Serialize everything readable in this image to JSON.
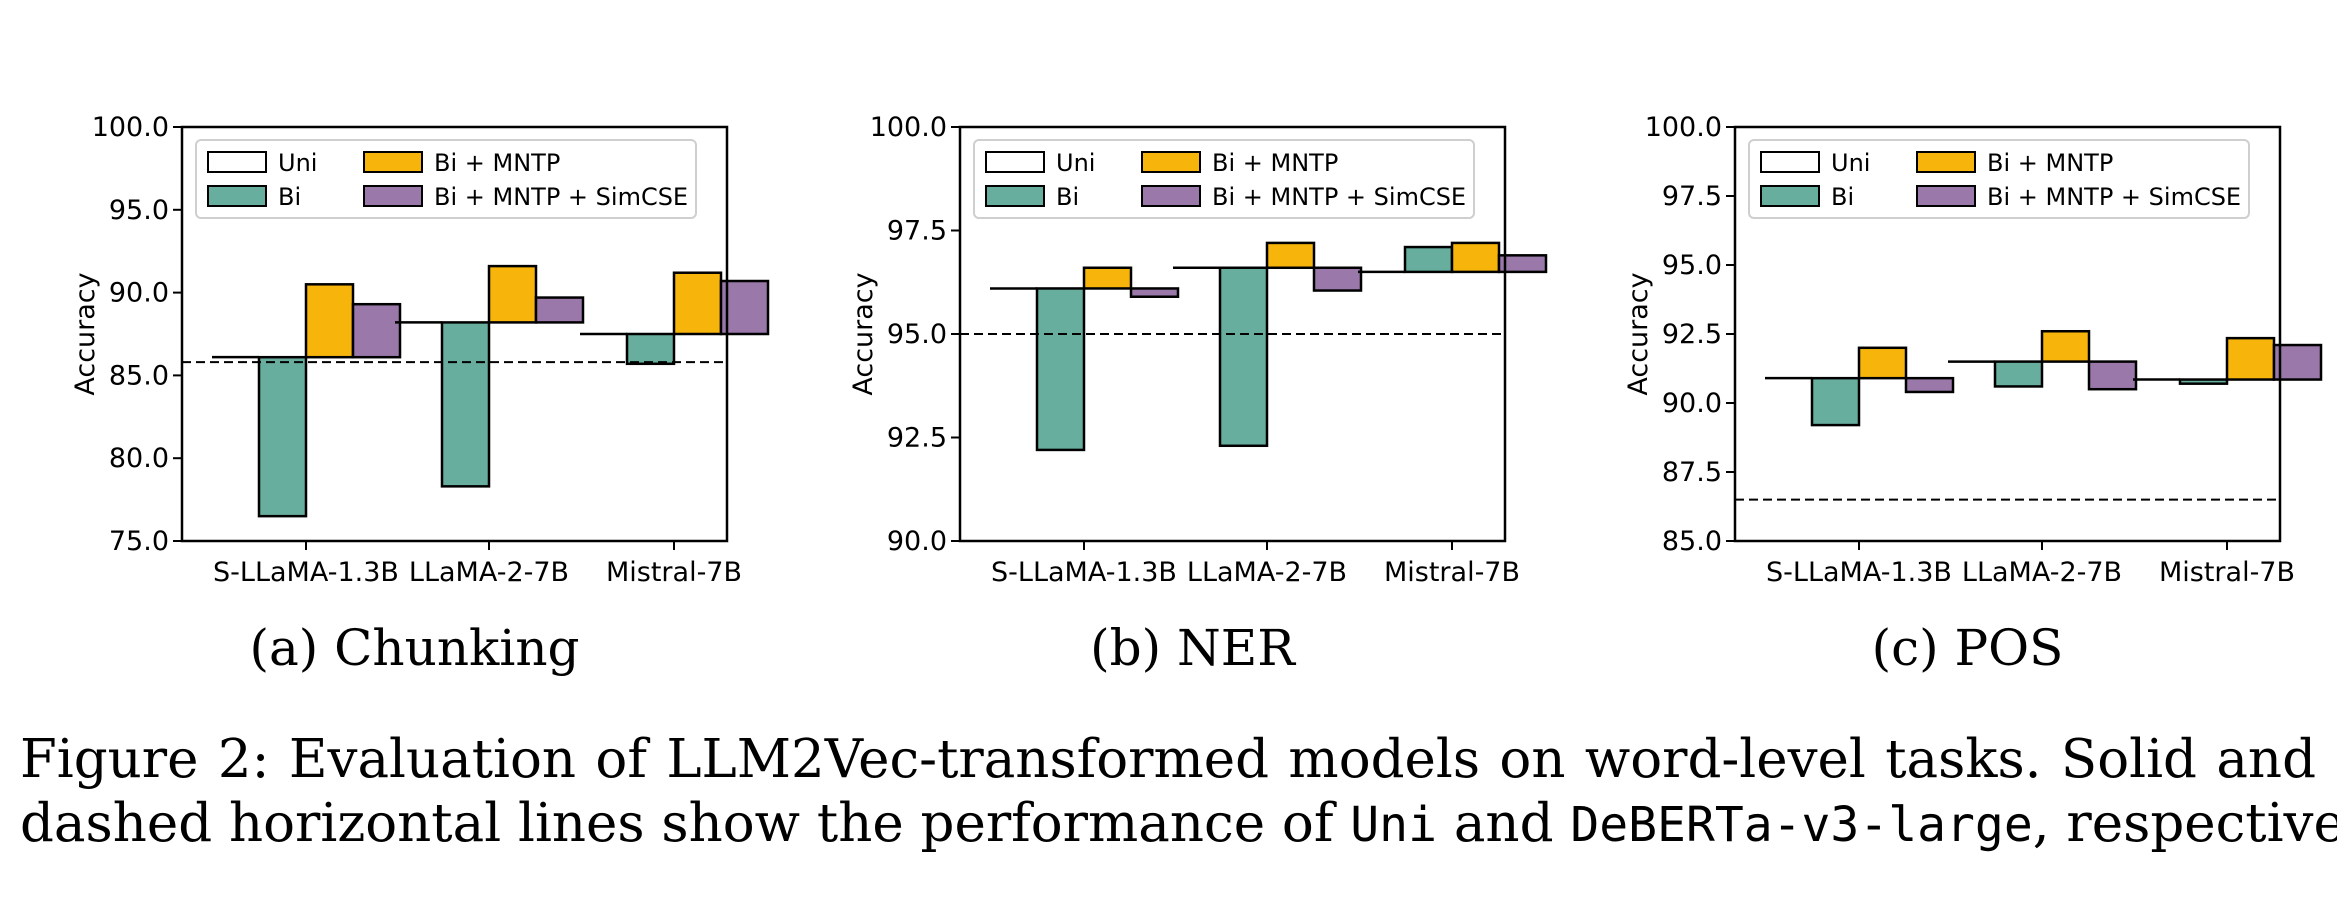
{
  "colors": {
    "Uni": "#ffffff",
    "Bi": "#67ae9f",
    "Bi + MNTP": "#f7b50c",
    "Bi + MNTP + SimCSE": "#9a79aa"
  },
  "chart_data": [
    {
      "type": "bar",
      "panel_label": "(a) Chunking",
      "ylabel": "Accuracy",
      "ylim": [
        75.0,
        100.0
      ],
      "yticks": [
        "75.0",
        "80.0",
        "85.0",
        "90.0",
        "95.0",
        "100.0"
      ],
      "categories": [
        "S-LLaMA-1.3B",
        "LLaMA-2-7B",
        "Mistral-7B"
      ],
      "baseline_series": "Uni",
      "series": [
        {
          "name": "Uni",
          "values": [
            86.1,
            88.2,
            87.5
          ]
        },
        {
          "name": "Bi",
          "values": [
            76.5,
            78.3,
            85.7
          ]
        },
        {
          "name": "Bi + MNTP",
          "values": [
            90.5,
            91.6,
            91.2
          ]
        },
        {
          "name": "Bi + MNTP + SimCSE",
          "values": [
            89.3,
            89.7,
            90.7
          ]
        }
      ],
      "dashed_reference": 85.8,
      "legend": [
        "Uni",
        "Bi",
        "Bi + MNTP",
        "Bi + MNTP + SimCSE"
      ],
      "legend_position": "upper-left"
    },
    {
      "type": "bar",
      "panel_label": "(b) NER",
      "ylabel": "Accuracy",
      "ylim": [
        90.0,
        100.0
      ],
      "yticks": [
        "90.0",
        "92.5",
        "95.0",
        "97.5",
        "100.0"
      ],
      "categories": [
        "S-LLaMA-1.3B",
        "LLaMA-2-7B",
        "Mistral-7B"
      ],
      "baseline_series": "Uni",
      "series": [
        {
          "name": "Uni",
          "values": [
            96.1,
            96.6,
            96.5
          ]
        },
        {
          "name": "Bi",
          "values": [
            92.2,
            92.3,
            97.1
          ]
        },
        {
          "name": "Bi + MNTP",
          "values": [
            96.6,
            97.2,
            97.2
          ]
        },
        {
          "name": "Bi + MNTP + SimCSE",
          "values": [
            95.9,
            96.05,
            96.9
          ]
        }
      ],
      "dashed_reference": 95.0,
      "legend": [
        "Uni",
        "Bi",
        "Bi + MNTP",
        "Bi + MNTP + SimCSE"
      ],
      "legend_position": "upper-left"
    },
    {
      "type": "bar",
      "panel_label": "(c) POS",
      "ylabel": "Accuracy",
      "ylim": [
        85.0,
        100.0
      ],
      "yticks": [
        "85.0",
        "87.5",
        "90.0",
        "92.5",
        "95.0",
        "97.5",
        "100.0"
      ],
      "categories": [
        "S-LLaMA-1.3B",
        "LLaMA-2-7B",
        "Mistral-7B"
      ],
      "baseline_series": "Uni",
      "series": [
        {
          "name": "Uni",
          "values": [
            90.9,
            91.5,
            90.85
          ]
        },
        {
          "name": "Bi",
          "values": [
            89.2,
            90.6,
            90.7
          ]
        },
        {
          "name": "Bi + MNTP",
          "values": [
            92.0,
            92.6,
            92.35
          ]
        },
        {
          "name": "Bi + MNTP + SimCSE",
          "values": [
            90.4,
            90.5,
            92.1
          ]
        }
      ],
      "dashed_reference": 86.5,
      "legend": [
        "Uni",
        "Bi",
        "Bi + MNTP",
        "Bi + MNTP + SimCSE"
      ],
      "legend_position": "upper-left"
    }
  ],
  "caption": {
    "line1": "Figure 2: Evaluation of LLM2Vec-transformed models on word-level tasks. Solid and",
    "line2_pre": "dashed horizontal lines show the performance of ",
    "line2_code1": "Uni",
    "line2_mid": " and ",
    "line2_code2": "DeBERTa-v3-large",
    "line2_post": ", respectively."
  }
}
